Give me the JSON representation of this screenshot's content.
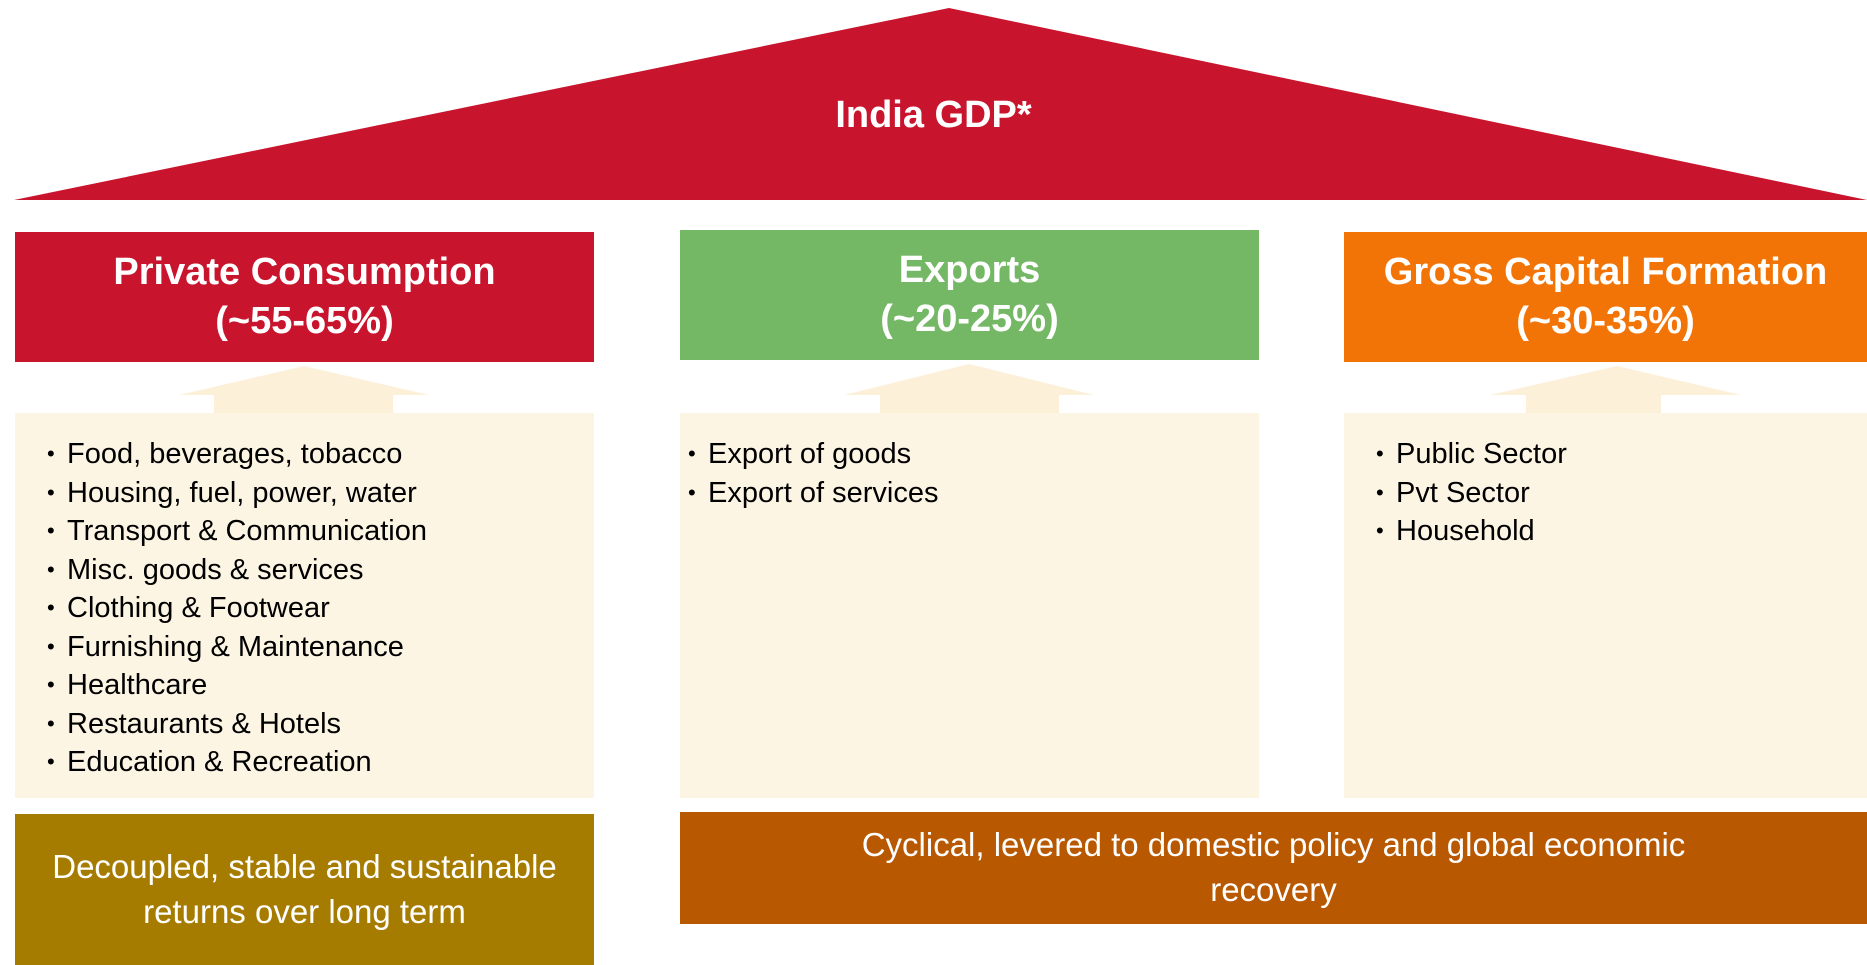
{
  "title": "India GDP*",
  "columns": [
    {
      "header": "Private Consumption",
      "share": "(~55-65%)",
      "items": [
        "Food, beverages, tobacco",
        "Housing, fuel, power, water",
        "Transport & Communication",
        "Misc. goods & services",
        "Clothing & Footwear",
        "Furnishing & Maintenance",
        "Healthcare",
        "Restaurants & Hotels",
        "Education & Recreation"
      ]
    },
    {
      "header": "Exports",
      "share": "(~20-25%)",
      "items": [
        "Export of goods",
        "Export of services"
      ]
    },
    {
      "header": "Gross Capital Formation",
      "share": "(~30-35%)",
      "items": [
        "Public Sector",
        "Pvt Sector",
        "Household"
      ]
    }
  ],
  "footers": [
    "Decoupled, stable and sustainable returns over long term",
    "Cyclical, levered to domestic policy and global economic recovery"
  ]
}
